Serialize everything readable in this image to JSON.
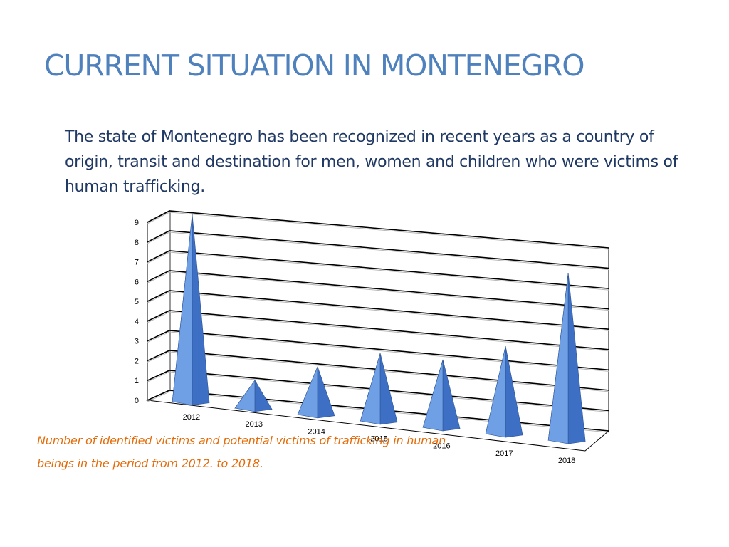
{
  "slide": {
    "title": "CURRENT SITUATION IN MONTENEGRO",
    "body": "The state of Montenegro has been recognized in recent years as a country of origin, transit and destination for men, women and children who were victims of human trafficking.",
    "caption_line1": "Number of identified victims and potential victims of trafficking in human",
    "caption_line2": "beings in the period from 2012. to 2018."
  },
  "colors": {
    "title": "#4f81bd",
    "body_text": "#1f3864",
    "caption": "#e46c0a",
    "pyramid_light": "#6fa0e6",
    "pyramid_dark": "#3d6fc4"
  },
  "chart_data": {
    "type": "bar",
    "style": "3d-pyramid",
    "categories": [
      "2012",
      "2013",
      "2014",
      "2015",
      "2016",
      "2017",
      "2018"
    ],
    "values": [
      9,
      1,
      2,
      3,
      3,
      4,
      8
    ],
    "ylim": [
      0,
      9
    ],
    "yticks": [
      0,
      1,
      2,
      3,
      4,
      5,
      6,
      7,
      8,
      9
    ],
    "grid": true,
    "legend": "none"
  }
}
